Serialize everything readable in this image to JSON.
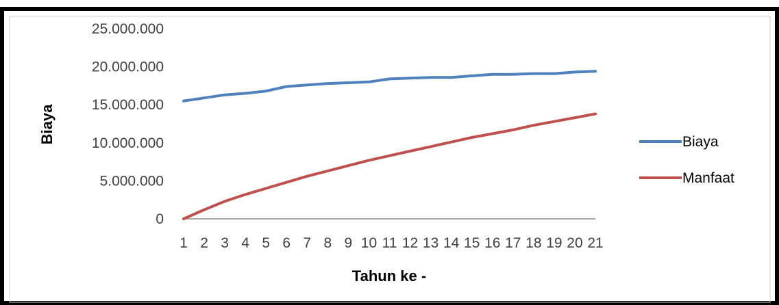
{
  "chart_data": {
    "type": "line",
    "title": "",
    "xlabel": "Tahun ke -",
    "ylabel": "Biaya",
    "categories": [
      "1",
      "2",
      "3",
      "4",
      "5",
      "6",
      "7",
      "8",
      "9",
      "10",
      "11",
      "12",
      "13",
      "14",
      "15",
      "16",
      "17",
      "18",
      "19",
      "20",
      "21"
    ],
    "y_ticks": [
      "0",
      "5.000.000",
      "10.000.000",
      "15.000.000",
      "20.000.000",
      "25.000.000"
    ],
    "y_tick_values": [
      0,
      5000000,
      10000000,
      15000000,
      20000000,
      25000000
    ],
    "ylim": [
      0,
      25000000
    ],
    "grid": false,
    "legend_position": "right",
    "series": [
      {
        "name": "Biaya",
        "color": "#4f81bd",
        "values": [
          15500000,
          15900000,
          16300000,
          16500000,
          16800000,
          17400000,
          17600000,
          17800000,
          17900000,
          18000000,
          18400000,
          18500000,
          18600000,
          18600000,
          18800000,
          19000000,
          19000000,
          19100000,
          19100000,
          19300000,
          19400000
        ]
      },
      {
        "name": "Manfaat",
        "color": "#c0504d",
        "values": [
          0,
          1200000,
          2300000,
          3200000,
          4000000,
          4800000,
          5600000,
          6300000,
          7000000,
          7700000,
          8300000,
          8900000,
          9500000,
          10100000,
          10700000,
          11200000,
          11700000,
          12300000,
          12800000,
          13300000,
          13800000
        ]
      }
    ]
  }
}
